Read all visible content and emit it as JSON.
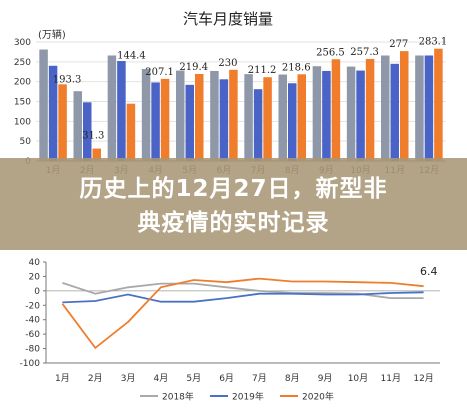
{
  "chart_data": [
    {
      "type": "bar",
      "title": "汽车月度销量",
      "ylabel": "(万辆)",
      "ylim": [
        0,
        300
      ],
      "yticks": [
        0,
        50,
        100,
        150,
        200,
        250,
        300
      ],
      "categories": [
        "1月",
        "2月",
        "3月",
        "4月",
        "5月",
        "6月",
        "7月",
        "8月",
        "9月",
        "10月",
        "11月",
        "12月"
      ],
      "series": [
        {
          "color": "#8e98a8",
          "values": [
            281,
            176,
            266,
            232,
            228,
            227,
            219,
            218,
            239,
            238,
            266,
            266
          ]
        },
        {
          "color": "#4a63c6",
          "values": [
            240,
            148,
            252,
            198,
            192,
            206,
            181,
            196,
            227,
            228,
            245,
            266
          ]
        },
        {
          "color": "#ef7d2c",
          "values": [
            193.3,
            31.3,
            144.4,
            207.1,
            219.4,
            230,
            211.2,
            218.6,
            256.5,
            257.3,
            277,
            283.1
          ]
        }
      ],
      "data_labels": [
        {
          "index": 0,
          "text": "193.3"
        },
        {
          "index": 1,
          "text": "31.3"
        },
        {
          "index": 2,
          "text": "144.4"
        },
        {
          "index": 3,
          "text": "207.1"
        },
        {
          "index": 4,
          "text": "219.4"
        },
        {
          "index": 5,
          "text": "230"
        },
        {
          "index": 6,
          "text": "211.2"
        },
        {
          "index": 7,
          "text": "218.6"
        },
        {
          "index": 8,
          "text": "256.5"
        },
        {
          "index": 9,
          "text": "257.3"
        },
        {
          "index": 10,
          "text": "277"
        },
        {
          "index": 11,
          "text": "283.1"
        }
      ]
    },
    {
      "type": "line",
      "ylim": [
        -100,
        40
      ],
      "yticks": [
        -100,
        -80,
        -60,
        -40,
        -20,
        0,
        20,
        40
      ],
      "categories": [
        "1月",
        "2月",
        "3月",
        "4月",
        "5月",
        "6月",
        "7月",
        "8月",
        "9月",
        "10月",
        "11月",
        "12月"
      ],
      "series": [
        {
          "name": "2018年",
          "color": "#a9a9a9",
          "values": [
            11,
            -4,
            5,
            10,
            10,
            5,
            0,
            -3,
            -3,
            -4,
            -10,
            -10
          ]
        },
        {
          "name": "2019年",
          "color": "#4a72c4",
          "values": [
            -16,
            -14,
            -5,
            -15,
            -15,
            -10,
            -4,
            -4,
            -5,
            -5,
            -3,
            -2
          ]
        },
        {
          "name": "2020年",
          "color": "#ef7d2c",
          "values": [
            -18,
            -79,
            -43,
            5,
            15,
            12,
            17,
            13,
            13,
            12,
            11,
            6.4
          ]
        }
      ],
      "annotation": "6.4",
      "legend": "bottom"
    }
  ],
  "banner": {
    "line1": "历史上的12月27日，新型非",
    "line2": "典疫情的实时记录"
  }
}
